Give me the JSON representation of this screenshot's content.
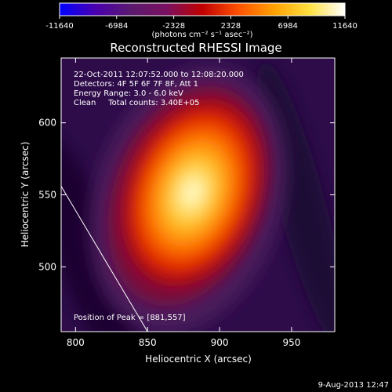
{
  "chart_data": {
    "type": "heatmap",
    "title": "Reconstructed RHESSI Image",
    "colorbar": {
      "ticks": [
        "-11640",
        "-6984",
        "-2328",
        "2328",
        "6984",
        "11640"
      ],
      "range": [
        -11640,
        11640
      ],
      "units_label": "(photons cm⁻² s⁻¹ asec⁻²)",
      "colormap": "blue-purple-red-yellow-white"
    },
    "xlabel": "Heliocentric X (arcsec)",
    "ylabel": "Heliocentric Y (arcsec)",
    "xlim": [
      790,
      980
    ],
    "ylim": [
      455,
      645
    ],
    "xticks": [
      800,
      850,
      900,
      950
    ],
    "yticks": [
      500,
      550,
      600
    ],
    "annotations": {
      "time_range": "22-Oct-2011 12:07:52.000 to 12:08:20.000",
      "detectors": "Detectors: 4F 5F 6F 7F 8F, Att 1",
      "energy": "Energy Range: 3.0 - 6.0 keV",
      "clean": "Clean     Total counts: 3.40E+05",
      "peak": "Position of Peak = [881,557]"
    },
    "peak": [
      881,
      557
    ],
    "peak_value": 11640,
    "limb_line": [
      [
        790,
        556
      ],
      [
        850,
        455
      ]
    ]
  },
  "footer": {
    "timestamp": "9-Aug-2013 12:47"
  },
  "colors": {
    "background": "#000000",
    "text": "#ffffff",
    "colormap_stops": [
      "#0000ff",
      "#4a00b0",
      "#5a1a6e",
      "#7a1060",
      "#c00000",
      "#ff5000",
      "#ffa000",
      "#ffe040",
      "#ffffff"
    ]
  }
}
